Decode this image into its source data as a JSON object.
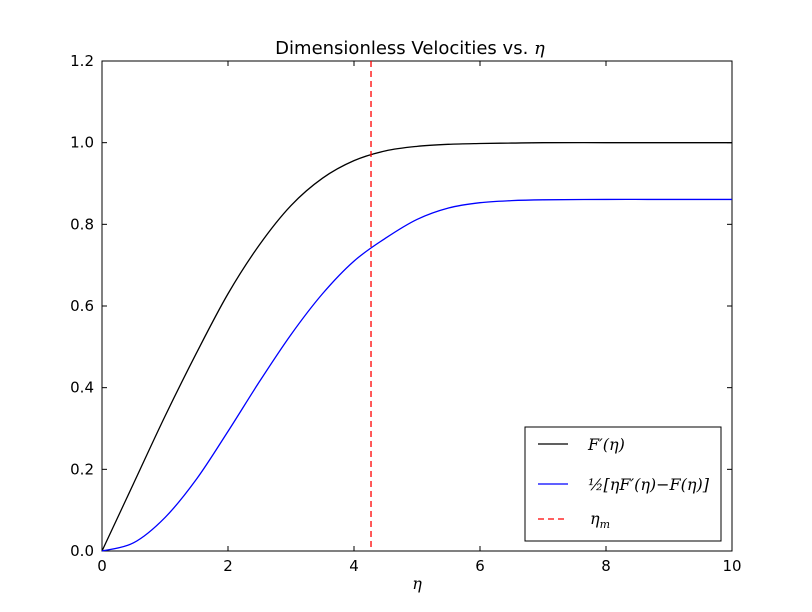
{
  "chart_data": {
    "type": "line",
    "title": "Dimensionless Velocities vs. ",
    "title_math": "η",
    "xlabel": "η",
    "ylabel": "",
    "xlim": [
      0,
      10
    ],
    "ylim": [
      0,
      1.2
    ],
    "x_ticks": [
      0,
      2,
      4,
      6,
      8,
      10
    ],
    "x_tick_labels": [
      "0",
      "2",
      "4",
      "6",
      "8",
      "10"
    ],
    "y_ticks": [
      0,
      0.2,
      0.4,
      0.6,
      0.8,
      1.0,
      1.2
    ],
    "y_tick_labels": [
      "0.0",
      "0.2",
      "0.4",
      "0.6",
      "0.8",
      "1.0",
      "1.2"
    ],
    "grid": false,
    "legend_position": "lower-right",
    "x": [
      0,
      0.5,
      1,
      1.5,
      2,
      2.5,
      3,
      3.5,
      4,
      4.5,
      5,
      5.5,
      6,
      6.5,
      7,
      8,
      9,
      10
    ],
    "series": [
      {
        "name": "F′(η)",
        "color": "#000000",
        "style": "solid",
        "values": [
          0.0,
          0.165,
          0.33,
          0.485,
          0.63,
          0.75,
          0.846,
          0.913,
          0.956,
          0.98,
          0.991,
          0.996,
          0.998,
          0.999,
          1.0,
          1.0,
          1.0,
          1.0
        ]
      },
      {
        "name": "½[ηF′(η)−F(η)]",
        "color": "#0000ff",
        "style": "solid",
        "values": [
          0.0,
          0.02,
          0.082,
          0.176,
          0.293,
          0.415,
          0.53,
          0.63,
          0.71,
          0.766,
          0.812,
          0.84,
          0.853,
          0.858,
          0.86,
          0.861,
          0.861,
          0.861
        ]
      },
      {
        "name": "η",
        "name_subscript": "m",
        "color": "#ff0000",
        "style": "dashed",
        "type": "vline",
        "x_value": 4.27
      }
    ]
  }
}
